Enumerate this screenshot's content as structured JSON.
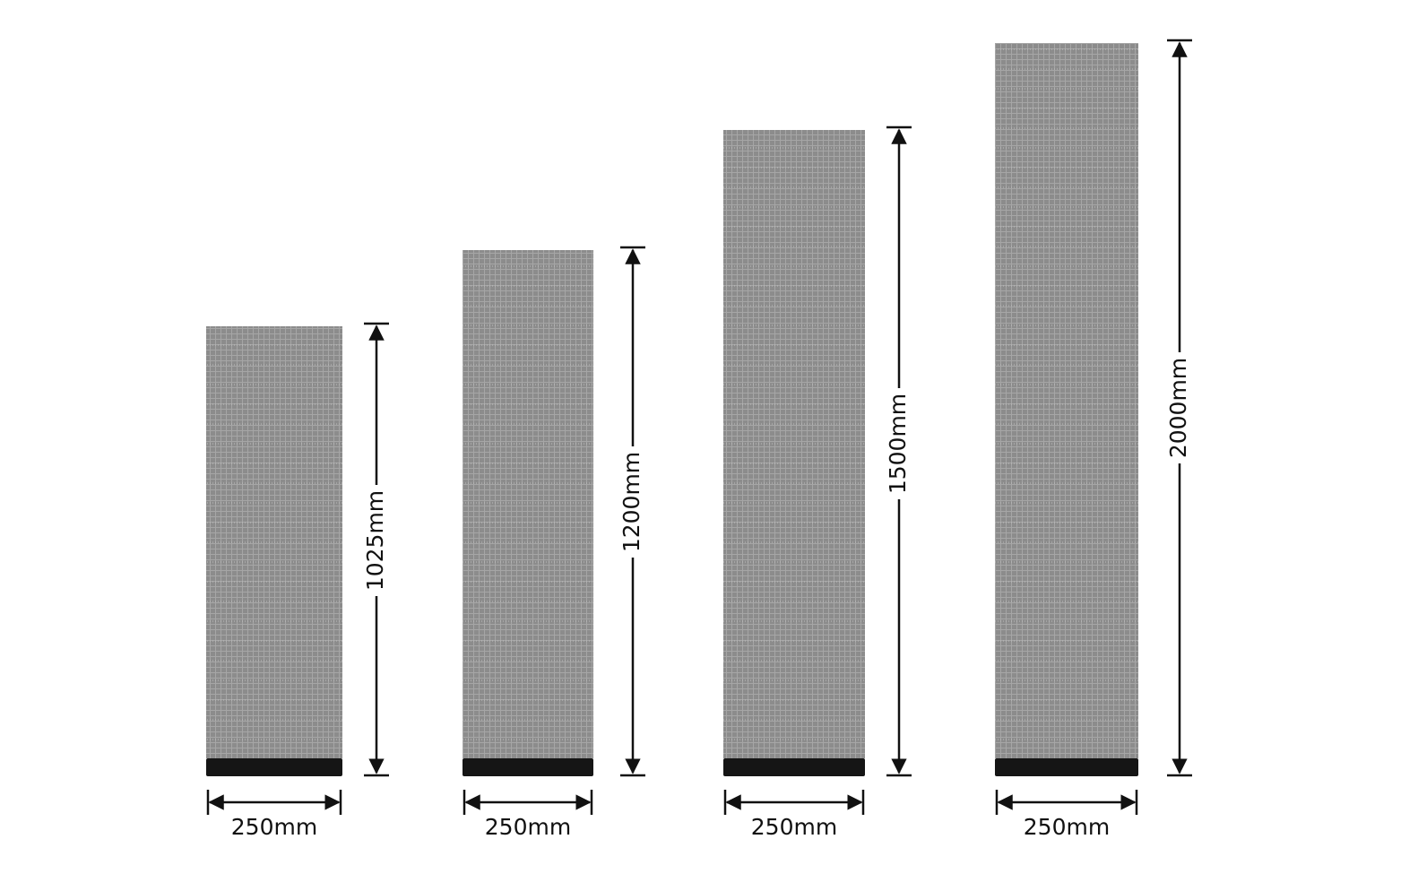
{
  "panels": [
    {
      "height_label": "1025mm",
      "width_label": "250mm"
    },
    {
      "height_label": "1200mm",
      "width_label": "250mm"
    },
    {
      "height_label": "1500mm",
      "width_label": "250mm"
    },
    {
      "height_label": "2000mm",
      "width_label": "250mm"
    }
  ]
}
